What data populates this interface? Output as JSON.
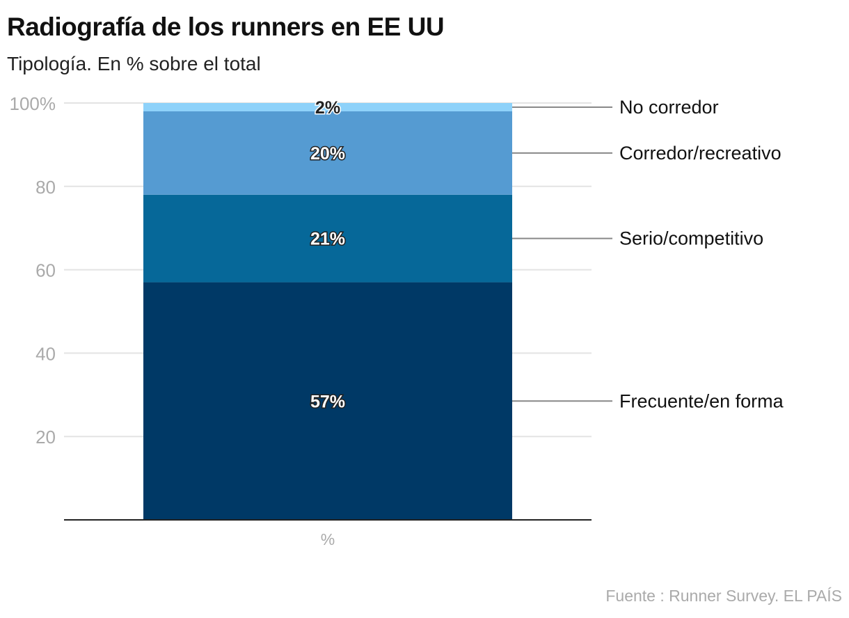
{
  "title": "Radiografía de los runners en EE UU",
  "subtitle": "Tipología. En % sobre el total",
  "source": "Fuente : Runner Survey. EL PAÍS",
  "chart_data": {
    "type": "bar",
    "stacked": true,
    "categories": [
      "%"
    ],
    "series": [
      {
        "name": "Frecuente/en forma",
        "values": [
          57
        ],
        "label": "57%",
        "color": "#003966"
      },
      {
        "name": "Serio/competitivo",
        "values": [
          21
        ],
        "label": "21%",
        "color": "#066899"
      },
      {
        "name": "Corredor/recreativo",
        "values": [
          20
        ],
        "label": "20%",
        "color": "#559BD2"
      },
      {
        "name": "No corredor",
        "values": [
          2
        ],
        "label": "2%",
        "color": "#8ED2FA"
      }
    ],
    "yticks": [
      "20",
      "40",
      "60",
      "80",
      "100%"
    ],
    "ylim": [
      0,
      100
    ],
    "xlabel": "",
    "ylabel": "",
    "grid": true,
    "legend": "right, direct labels"
  }
}
